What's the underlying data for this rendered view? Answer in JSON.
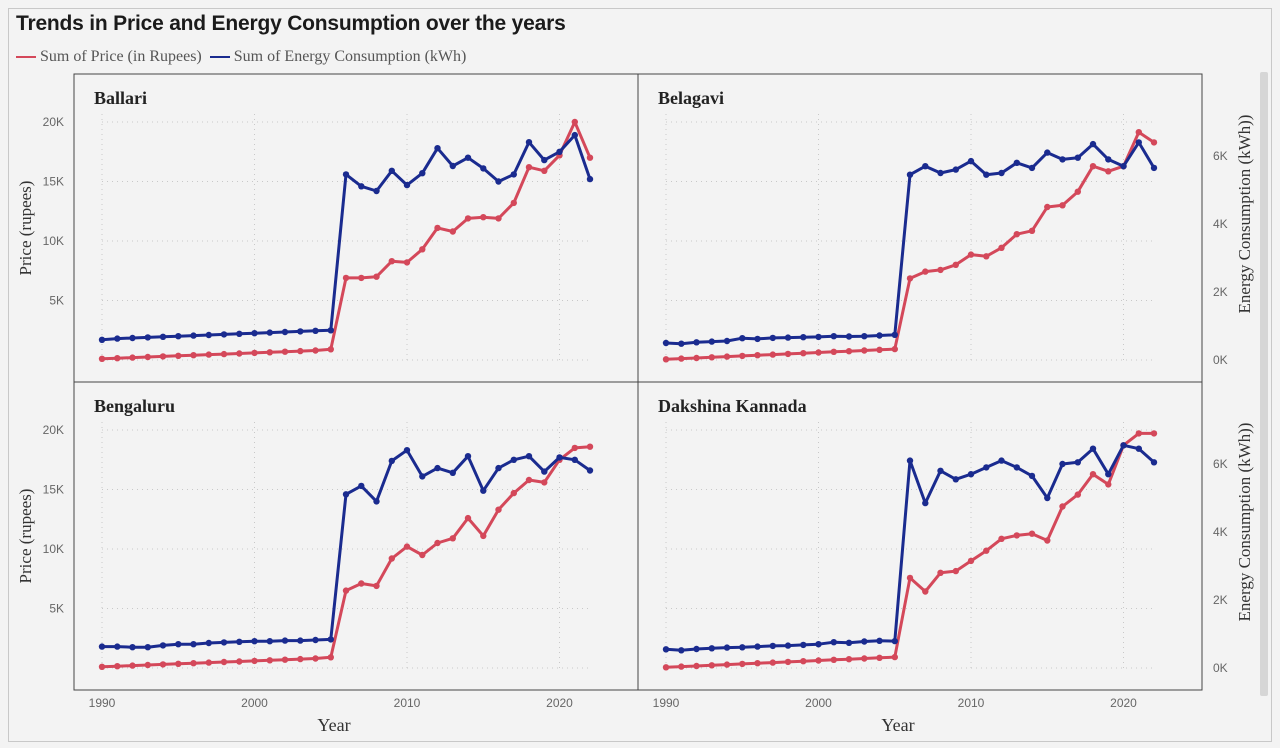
{
  "title": "Trends in Price and Energy Consumption over the years",
  "legend": [
    {
      "label": "Sum of Price (in Rupees)",
      "color": "#d4485a"
    },
    {
      "label": "Sum of Energy Consumption (kWh)",
      "color": "#1a2b8f"
    }
  ],
  "axes": {
    "y_left_label": "Price (rupees)",
    "y_right_label": "Energy Consumption (kWh))",
    "x_label": "Year",
    "x_ticks": [
      "1990",
      "2000",
      "2010",
      "2020"
    ],
    "y_left_ticks": [
      "5K",
      "10K",
      "15K",
      "20K"
    ],
    "y_right_ticks": [
      "0K",
      "2K",
      "4K",
      "6K"
    ]
  },
  "chart_data": [
    {
      "type": "line",
      "title": "Ballari",
      "x": [
        1990,
        1991,
        1992,
        1993,
        1994,
        1995,
        1996,
        1997,
        1998,
        1999,
        2000,
        2001,
        2002,
        2003,
        2004,
        2005,
        2006,
        2007,
        2008,
        2009,
        2010,
        2011,
        2012,
        2013,
        2014,
        2015,
        2016,
        2017,
        2018,
        2019,
        2020,
        2021,
        2022
      ],
      "xlabel": "Year",
      "ylabel": "Price (rupees)",
      "y2label": "Energy Consumption (kWh))",
      "xlim": [
        1990,
        2022
      ],
      "ylim": [
        0,
        20000
      ],
      "y2lim": [
        0,
        7000
      ],
      "series": [
        {
          "name": "Sum of Price (in Rupees)",
          "axis": "left",
          "color": "#d4485a",
          "values": [
            100,
            150,
            200,
            250,
            300,
            350,
            400,
            450,
            500,
            550,
            600,
            650,
            700,
            750,
            800,
            900,
            6900,
            6900,
            7000,
            8300,
            8200,
            9300,
            11100,
            10800,
            11900,
            12000,
            11900,
            13200,
            16200,
            15900,
            17200,
            20000,
            17000
          ]
        },
        {
          "name": "Sum of Energy Consumption (kWh)",
          "axis": "left",
          "color": "#1a2b8f",
          "values": [
            1700,
            1800,
            1850,
            1900,
            1950,
            2000,
            2050,
            2100,
            2150,
            2200,
            2250,
            2300,
            2350,
            2400,
            2450,
            2500,
            15600,
            14600,
            14200,
            15900,
            14700,
            15700,
            17800,
            16300,
            17000,
            16100,
            15000,
            15600,
            18300,
            16800,
            17500,
            18900,
            15200
          ]
        }
      ]
    },
    {
      "type": "line",
      "title": "Belagavi",
      "x": [
        1990,
        1991,
        1992,
        1993,
        1994,
        1995,
        1996,
        1997,
        1998,
        1999,
        2000,
        2001,
        2002,
        2003,
        2004,
        2005,
        2006,
        2007,
        2008,
        2009,
        2010,
        2011,
        2012,
        2013,
        2014,
        2015,
        2016,
        2017,
        2018,
        2019,
        2020,
        2021,
        2022
      ],
      "xlabel": "Year",
      "ylabel": "Price (rupees)",
      "y2label": "Energy Consumption (kWh))",
      "xlim": [
        1990,
        2022
      ],
      "ylim": [
        0,
        20000
      ],
      "y2lim": [
        0,
        7000
      ],
      "series": [
        {
          "name": "Sum of Price (in Rupees)",
          "axis": "right",
          "color": "#d4485a",
          "values": [
            20,
            40,
            60,
            80,
            100,
            120,
            140,
            160,
            180,
            200,
            220,
            240,
            260,
            280,
            300,
            320,
            2400,
            2600,
            2650,
            2800,
            3100,
            3050,
            3300,
            3700,
            3800,
            4500,
            4550,
            4950,
            5700,
            5550,
            5700,
            6700,
            6400
          ]
        },
        {
          "name": "Sum of Energy Consumption (kWh)",
          "axis": "right",
          "color": "#1a2b8f",
          "values": [
            500,
            480,
            520,
            540,
            560,
            640,
            620,
            650,
            660,
            670,
            680,
            700,
            690,
            700,
            720,
            740,
            5450,
            5700,
            5500,
            5600,
            5850,
            5450,
            5500,
            5800,
            5650,
            6100,
            5900,
            5950,
            6350,
            5900,
            5700,
            6400,
            5650
          ]
        }
      ]
    },
    {
      "type": "line",
      "title": "Bengaluru",
      "x": [
        1990,
        1991,
        1992,
        1993,
        1994,
        1995,
        1996,
        1997,
        1998,
        1999,
        2000,
        2001,
        2002,
        2003,
        2004,
        2005,
        2006,
        2007,
        2008,
        2009,
        2010,
        2011,
        2012,
        2013,
        2014,
        2015,
        2016,
        2017,
        2018,
        2019,
        2020,
        2021,
        2022
      ],
      "xlabel": "Year",
      "ylabel": "Price (rupees)",
      "y2label": "Energy Consumption (kWh))",
      "xlim": [
        1990,
        2022
      ],
      "ylim": [
        0,
        20000
      ],
      "y2lim": [
        0,
        7000
      ],
      "series": [
        {
          "name": "Sum of Price (in Rupees)",
          "axis": "left",
          "color": "#d4485a",
          "values": [
            100,
            150,
            200,
            250,
            300,
            350,
            400,
            450,
            500,
            550,
            600,
            650,
            700,
            750,
            800,
            900,
            6500,
            7100,
            6900,
            9200,
            10200,
            9500,
            10500,
            10900,
            12600,
            11100,
            13300,
            14700,
            15800,
            15600,
            17500,
            18500,
            18600
          ]
        },
        {
          "name": "Sum of Energy Consumption (kWh)",
          "axis": "left",
          "color": "#1a2b8f",
          "values": [
            1800,
            1800,
            1750,
            1750,
            1900,
            2000,
            2000,
            2100,
            2150,
            2200,
            2250,
            2250,
            2300,
            2300,
            2350,
            2400,
            14600,
            15300,
            14000,
            17400,
            18300,
            16100,
            16800,
            16400,
            17800,
            14900,
            16800,
            17500,
            17800,
            16500,
            17700,
            17500,
            16600
          ]
        }
      ]
    },
    {
      "type": "line",
      "title": "Dakshina Kannada",
      "x": [
        1990,
        1991,
        1992,
        1993,
        1994,
        1995,
        1996,
        1997,
        1998,
        1999,
        2000,
        2001,
        2002,
        2003,
        2004,
        2005,
        2006,
        2007,
        2008,
        2009,
        2010,
        2011,
        2012,
        2013,
        2014,
        2015,
        2016,
        2017,
        2018,
        2019,
        2020,
        2021,
        2022
      ],
      "xlabel": "Year",
      "ylabel": "Price (rupees)",
      "y2label": "Energy Consumption (kWh))",
      "xlim": [
        1990,
        2022
      ],
      "ylim": [
        0,
        20000
      ],
      "y2lim": [
        0,
        7000
      ],
      "series": [
        {
          "name": "Sum of Price (in Rupees)",
          "axis": "right",
          "color": "#d4485a",
          "values": [
            20,
            40,
            60,
            80,
            100,
            120,
            140,
            160,
            180,
            200,
            220,
            240,
            260,
            280,
            300,
            320,
            2650,
            2250,
            2800,
            2850,
            3150,
            3450,
            3800,
            3900,
            3950,
            3750,
            4750,
            5100,
            5700,
            5400,
            6550,
            6900,
            6900
          ]
        },
        {
          "name": "Sum of Energy Consumption (kWh)",
          "axis": "right",
          "color": "#1a2b8f",
          "values": [
            550,
            520,
            560,
            580,
            600,
            610,
            630,
            650,
            660,
            680,
            700,
            760,
            740,
            780,
            800,
            790,
            6100,
            4850,
            5800,
            5550,
            5700,
            5900,
            6100,
            5900,
            5650,
            5000,
            6000,
            6050,
            6450,
            5700,
            6550,
            6450,
            6050
          ]
        }
      ]
    }
  ]
}
